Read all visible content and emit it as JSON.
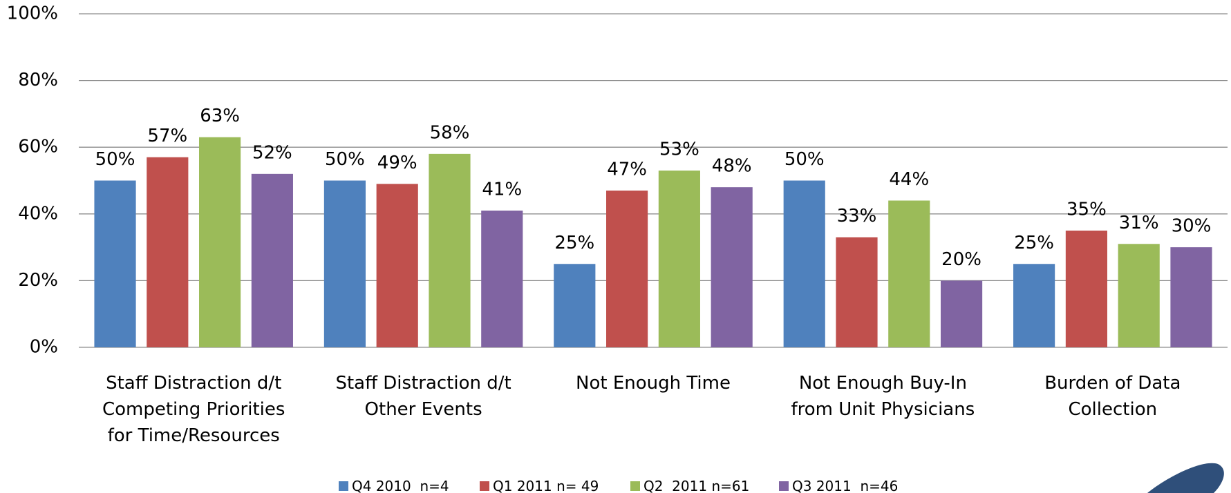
{
  "chart_data": {
    "type": "bar",
    "categories": [
      "Staff Distraction d/t Competing Priorities for Time/Resources",
      "Staff Distraction d/t Other Events",
      "Not Enough Time",
      "Not Enough Buy-In from Unit Physicians",
      "Burden of Data Collection"
    ],
    "series": [
      {
        "name": "Q4 2010  n=4",
        "color": "#4f81bd",
        "values": [
          50,
          50,
          25,
          50,
          25
        ],
        "value_labels": [
          "50%",
          "50%",
          "25%",
          "50%",
          "25%"
        ]
      },
      {
        "name": "Q1 2011 n= 49",
        "color": "#c0504d",
        "values": [
          57,
          49,
          47,
          33,
          35
        ],
        "value_labels": [
          "57%",
          "49%",
          "47%",
          "33%",
          "35%"
        ]
      },
      {
        "name": "Q2  2011 n=61",
        "color": "#9bbb59",
        "values": [
          63,
          58,
          53,
          44,
          31
        ],
        "value_labels": [
          "63%",
          "58%",
          "53%",
          "44%",
          "31%"
        ]
      },
      {
        "name": "Q3 2011  n=46",
        "color": "#8064a2",
        "values": [
          52,
          41,
          48,
          20,
          30
        ],
        "value_labels": [
          "52%",
          "41%",
          "48%",
          "20%",
          "30%"
        ]
      }
    ],
    "ylim": [
      0,
      100
    ],
    "yticks": [
      {
        "value": 0,
        "label": "0%"
      },
      {
        "value": 20,
        "label": "20%"
      },
      {
        "value": 40,
        "label": "40%"
      },
      {
        "value": 60,
        "label": "60%"
      },
      {
        "value": 80,
        "label": "80%"
      },
      {
        "value": 100,
        "label": "100%"
      }
    ],
    "grid": true,
    "legend": "bottom"
  }
}
